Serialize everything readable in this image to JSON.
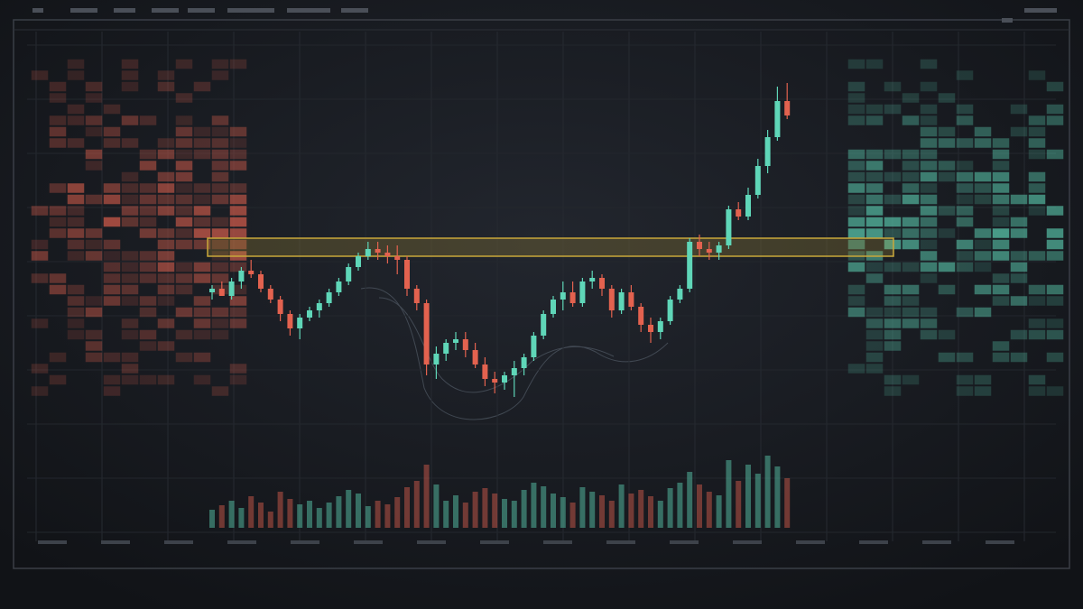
{
  "chart_data": {
    "type": "candlestick",
    "open": [
      39,
      40,
      38,
      42,
      45,
      44,
      40,
      37,
      33,
      29,
      32,
      34,
      36,
      39,
      42,
      46,
      49,
      51,
      50,
      49,
      48,
      40,
      36,
      19,
      22,
      25,
      26,
      23,
      19,
      15,
      14,
      16,
      18,
      21,
      27,
      33,
      37,
      39,
      36,
      42,
      43,
      40,
      34,
      39,
      35,
      30,
      28,
      31,
      37,
      40,
      53,
      51,
      50,
      52,
      62,
      60,
      66,
      74,
      82,
      92
    ],
    "high": [
      41,
      42,
      43,
      46,
      48,
      45,
      41,
      38,
      34,
      33,
      35,
      37,
      40,
      43,
      47,
      50,
      53,
      53,
      52,
      52,
      49,
      41,
      37,
      24,
      26,
      28,
      28,
      25,
      21,
      17,
      17,
      20,
      22,
      28,
      34,
      38,
      42,
      42,
      43,
      45,
      44,
      41,
      40,
      41,
      36,
      32,
      32,
      38,
      41,
      54,
      55,
      53,
      53,
      63,
      64,
      68,
      76,
      84,
      96,
      97
    ],
    "low": [
      37,
      38,
      37,
      40,
      43,
      39,
      36,
      31,
      27,
      26,
      31,
      32,
      35,
      38,
      41,
      45,
      48,
      48,
      47,
      44,
      38,
      34,
      16,
      15,
      20,
      23,
      21,
      18,
      13,
      11,
      12,
      10,
      16,
      20,
      26,
      32,
      34,
      35,
      35,
      40,
      38,
      32,
      33,
      34,
      28,
      25,
      26,
      30,
      36,
      39,
      49,
      48,
      48,
      51,
      59,
      59,
      65,
      72,
      81,
      87
    ],
    "close": [
      40,
      38,
      42,
      45,
      44,
      40,
      37,
      33,
      29,
      32,
      34,
      36,
      39,
      42,
      46,
      49,
      51,
      50,
      49,
      48,
      40,
      36,
      19,
      22,
      25,
      26,
      23,
      19,
      15,
      14,
      16,
      18,
      21,
      27,
      33,
      37,
      39,
      36,
      42,
      43,
      40,
      34,
      39,
      35,
      30,
      28,
      31,
      37,
      40,
      53,
      51,
      50,
      52,
      62,
      60,
      66,
      74,
      82,
      92,
      88
    ],
    "volume": [
      20,
      25,
      30,
      22,
      35,
      28,
      18,
      40,
      32,
      26,
      30,
      22,
      28,
      35,
      42,
      38,
      24,
      30,
      26,
      34,
      45,
      52,
      70,
      48,
      30,
      36,
      28,
      40,
      44,
      38,
      32,
      30,
      42,
      50,
      46,
      38,
      34,
      28,
      45,
      40,
      36,
      30,
      48,
      38,
      42,
      35,
      30,
      44,
      50,
      62,
      48,
      40,
      36,
      75,
      52,
      70,
      60,
      80,
      68,
      55
    ],
    "ylim": [
      0,
      100
    ],
    "vlim": [
      0,
      100
    ],
    "zone": [
      49,
      54
    ],
    "up_color": "#5fd6b8",
    "down_color": "#e3624f",
    "zone_color": "#c9a83a",
    "grid": true
  }
}
